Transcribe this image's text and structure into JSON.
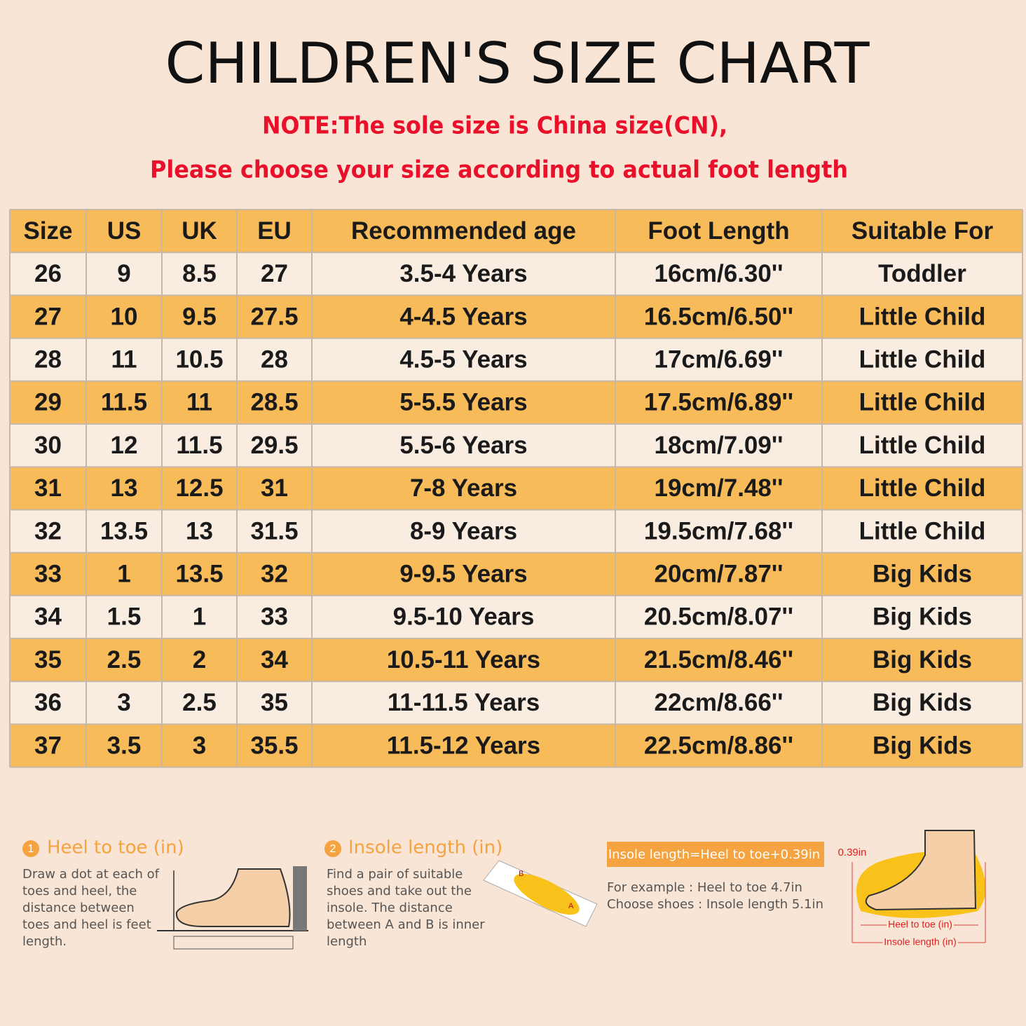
{
  "header": {
    "title": "CHILDREN'S SIZE CHART",
    "notes": [
      "NOTE:The sole size is China size(CN),",
      "Please choose your size according to actual foot length"
    ]
  },
  "table": {
    "columns": [
      "Size",
      "US",
      "UK",
      "EU",
      "Recommended age",
      "Foot Length",
      "Suitable For"
    ],
    "rows": [
      [
        "26",
        "9",
        "8.5",
        "27",
        "3.5-4 Years",
        "16cm/6.30''",
        "Toddler"
      ],
      [
        "27",
        "10",
        "9.5",
        "27.5",
        "4-4.5 Years",
        "16.5cm/6.50''",
        "Little Child"
      ],
      [
        "28",
        "11",
        "10.5",
        "28",
        "4.5-5 Years",
        "17cm/6.69''",
        "Little Child"
      ],
      [
        "29",
        "11.5",
        "11",
        "28.5",
        "5-5.5 Years",
        "17.5cm/6.89''",
        "Little Child"
      ],
      [
        "30",
        "12",
        "11.5",
        "29.5",
        "5.5-6 Years",
        "18cm/7.09''",
        "Little Child"
      ],
      [
        "31",
        "13",
        "12.5",
        "31",
        "7-8 Years",
        "19cm/7.48''",
        "Little Child"
      ],
      [
        "32",
        "13.5",
        "13",
        "31.5",
        "8-9 Years",
        "19.5cm/7.68''",
        "Little Child"
      ],
      [
        "33",
        "1",
        "13.5",
        "32",
        "9-9.5 Years",
        "20cm/7.87''",
        "Big Kids"
      ],
      [
        "34",
        "1.5",
        "1",
        "33",
        "9.5-10 Years",
        "20.5cm/8.07''",
        "Big Kids"
      ],
      [
        "35",
        "2.5",
        "2",
        "34",
        "10.5-11 Years",
        "21.5cm/8.46''",
        "Big Kids"
      ],
      [
        "36",
        "3",
        "2.5",
        "35",
        "11-11.5 Years",
        "22cm/8.66''",
        "Big Kids"
      ],
      [
        "37",
        "3.5",
        "3",
        "35.5",
        "11.5-12 Years",
        "22.5cm/8.86''",
        "Big Kids"
      ]
    ]
  },
  "guide": {
    "steps": [
      {
        "number": "1",
        "title": "Heel to toe (in)",
        "lines": [
          "Draw a dot at each of",
          "toes and heel, the",
          "distance between",
          "toes and heel is feet",
          "length."
        ]
      },
      {
        "number": "2",
        "title": "Insole length (in)",
        "lines": [
          "Find a pair of suitable",
          "shoes and take out the",
          "insole. The distance",
          "between A and B is inner",
          "length"
        ]
      }
    ],
    "insole_points": [
      "B",
      "A"
    ],
    "formula": "Insole length=Heel to toe+0.39in",
    "example": [
      "For example : Heel to toe  4.7in",
      "Choose shoes : Insole length 5.1in"
    ],
    "diagram_labels": {
      "gap": "0.39in",
      "heel_to_toe": "Heel to toe (in)",
      "insole": "Insole length (in)"
    }
  }
}
